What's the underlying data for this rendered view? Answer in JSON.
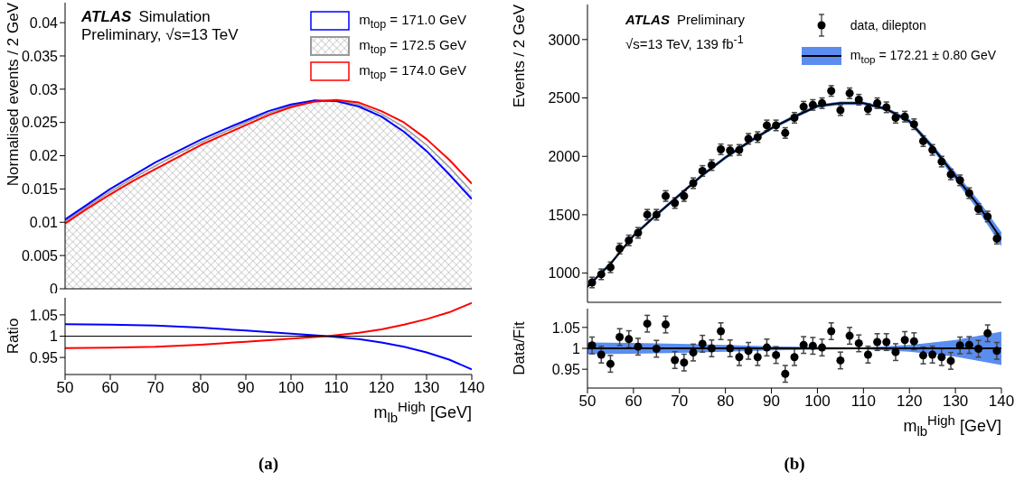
{
  "chart_data": [
    {
      "type": "line",
      "ylabel": "Normalised events / 2 GeV",
      "xlim": [
        50,
        140
      ],
      "xticks": [
        50,
        60,
        70,
        80,
        90,
        100,
        110,
        120,
        130,
        140
      ],
      "ylim": [
        0,
        0.043
      ],
      "yticks": [
        0,
        0.005,
        0.01,
        0.015,
        0.02,
        0.025,
        0.03,
        0.035,
        0.04
      ],
      "tick_labels": "y",
      "legend": "top right",
      "annotations": [
        "ATLAS",
        "Simulation",
        "Preliminary, √s=13 TeV"
      ],
      "series": [
        {
          "name": "m$_{top}$ = 171.0 GeV",
          "color": "#0000ff",
          "x": [
            50,
            55,
            60,
            65,
            70,
            75,
            80,
            85,
            90,
            95,
            100,
            105,
            110,
            115,
            120,
            125,
            130,
            135,
            140
          ],
          "values": [
            0.0104,
            0.0127,
            0.015,
            0.017,
            0.019,
            0.0207,
            0.0224,
            0.0239,
            0.0253,
            0.0267,
            0.0277,
            0.0283,
            0.0282,
            0.0274,
            0.0259,
            0.0236,
            0.0207,
            0.0172,
            0.0135
          ]
        },
        {
          "name": "m$_{top}$ = 172.5 GeV",
          "type": "area",
          "color": "#999999",
          "x": [
            50,
            55,
            60,
            65,
            70,
            75,
            80,
            85,
            90,
            95,
            100,
            105,
            110,
            115,
            120,
            125,
            130,
            135,
            140
          ],
          "values": [
            0.0101,
            0.0124,
            0.0146,
            0.0166,
            0.0185,
            0.0203,
            0.022,
            0.0235,
            0.025,
            0.0264,
            0.0275,
            0.0282,
            0.0283,
            0.0277,
            0.0263,
            0.0243,
            0.0216,
            0.0183,
            0.0146
          ]
        },
        {
          "name": "m$_{top}$ = 174.0 GeV",
          "color": "#ff0000",
          "x": [
            50,
            55,
            60,
            65,
            70,
            75,
            80,
            85,
            90,
            95,
            100,
            105,
            110,
            115,
            120,
            125,
            130,
            135,
            140
          ],
          "values": [
            0.0098,
            0.0121,
            0.0142,
            0.0162,
            0.018,
            0.0198,
            0.0216,
            0.0231,
            0.0246,
            0.0261,
            0.0273,
            0.0281,
            0.0284,
            0.028,
            0.0267,
            0.025,
            0.0225,
            0.0194,
            0.0158
          ]
        }
      ]
    },
    {
      "type": "line",
      "ylabel": "Ratio",
      "xlabel": "m$_{lb}$$^{High}$ [GeV]",
      "xlim": [
        50,
        140
      ],
      "xticks": [
        50,
        60,
        70,
        80,
        90,
        100,
        110,
        120,
        130,
        140
      ],
      "ylim": [
        0.91,
        1.09
      ],
      "yticks": [
        0.95,
        1,
        1.05
      ],
      "annotations": [
        "(a)"
      ],
      "ref_lines": [
        {
          "axis": "y",
          "value": 1,
          "color": "#000000"
        }
      ],
      "series": [
        {
          "color": "#0000ff",
          "x": [
            50,
            60,
            70,
            80,
            90,
            100,
            108,
            115,
            120,
            125,
            130,
            135,
            140
          ],
          "values": [
            1.028,
            1.027,
            1.025,
            1.02,
            1.013,
            1.006,
            1.0,
            0.993,
            0.985,
            0.975,
            0.962,
            0.945,
            0.922
          ]
        },
        {
          "color": "#ff0000",
          "x": [
            50,
            60,
            70,
            80,
            90,
            100,
            108,
            115,
            120,
            125,
            130,
            135,
            140
          ],
          "values": [
            0.972,
            0.973,
            0.975,
            0.98,
            0.987,
            0.994,
            1.0,
            1.008,
            1.016,
            1.027,
            1.04,
            1.056,
            1.078
          ]
        }
      ]
    },
    {
      "type": "scatter",
      "ylabel": "Events / 2 GeV",
      "xlim": [
        50,
        140
      ],
      "xticks": [
        50,
        60,
        70,
        80,
        90,
        100,
        110,
        120,
        130,
        140
      ],
      "ylim": [
        750,
        3300
      ],
      "yticks": [
        1000,
        1500,
        2000,
        2500,
        3000
      ],
      "tick_labels": "y",
      "legend": "top right",
      "annotations": [
        "ATLAS",
        "Preliminary",
        "√s=13 TeV, 139 fb$^{-1}$"
      ],
      "series": [
        {
          "name": "data, dilepton",
          "marker": "circle",
          "color": "#000000",
          "x": [
            51,
            53,
            55,
            57,
            59,
            61,
            63,
            65,
            67,
            69,
            71,
            73,
            75,
            77,
            79,
            81,
            83,
            85,
            87,
            89,
            91,
            93,
            95,
            97,
            99,
            101,
            103,
            105,
            107,
            109,
            111,
            113,
            115,
            117,
            119,
            121,
            123,
            125,
            127,
            129,
            131,
            133,
            135,
            137,
            139
          ],
          "values": [
            920,
            990,
            1050,
            1210,
            1280,
            1345,
            1500,
            1500,
            1660,
            1600,
            1660,
            1770,
            1875,
            1925,
            2060,
            2050,
            2055,
            2150,
            2165,
            2265,
            2265,
            2200,
            2330,
            2425,
            2440,
            2455,
            2560,
            2395,
            2540,
            2485,
            2405,
            2455,
            2420,
            2330,
            2340,
            2275,
            2130,
            2055,
            1955,
            1845,
            1795,
            1685,
            1550,
            1485,
            1295
          ],
          "errors": [
            45,
            45,
            45,
            45,
            45,
            45,
            45,
            45,
            45,
            45,
            45,
            45,
            45,
            45,
            45,
            45,
            45,
            45,
            45,
            45,
            45,
            45,
            45,
            45,
            45,
            45,
            45,
            45,
            45,
            45,
            45,
            45,
            45,
            45,
            45,
            45,
            45,
            45,
            45,
            45,
            45,
            45,
            45,
            45,
            45
          ]
        },
        {
          "name": "m$_{top}$ = 172.21 ± 0.80 GeV",
          "type": "line",
          "color": "#000000",
          "x": [
            50,
            55,
            60,
            65,
            70,
            75,
            80,
            85,
            90,
            95,
            100,
            105,
            110,
            115,
            120,
            125,
            130,
            135,
            140
          ],
          "values": [
            884,
            1080,
            1320,
            1500,
            1670,
            1840,
            1990,
            2120,
            2240,
            2340,
            2430,
            2455,
            2455,
            2405,
            2300,
            2080,
            1830,
            1580,
            1290
          ],
          "lower": [
            869,
            1065,
            1305,
            1485,
            1655,
            1825,
            1975,
            2105,
            2225,
            2325,
            2415,
            2440,
            2440,
            2390,
            2280,
            2055,
            1795,
            1535,
            1230
          ],
          "upper": [
            899,
            1095,
            1335,
            1515,
            1685,
            1855,
            2005,
            2135,
            2255,
            2355,
            2445,
            2470,
            2470,
            2420,
            2320,
            2105,
            1865,
            1625,
            1350
          ]
        }
      ]
    },
    {
      "type": "scatter",
      "ylabel": "Data/Fit",
      "xlabel": "m$_{lb}$$^{High}$ [GeV]",
      "xlim": [
        50,
        140
      ],
      "xticks": [
        50,
        60,
        70,
        80,
        90,
        100,
        110,
        120,
        130,
        140
      ],
      "ylim": [
        0.905,
        1.095
      ],
      "yticks": [
        0.95,
        1,
        1.05
      ],
      "annotations": [
        "(b)"
      ],
      "series": [
        {
          "marker": "circle",
          "color": "#000000",
          "x": [
            51,
            53,
            55,
            57,
            59,
            61,
            63,
            65,
            67,
            69,
            71,
            73,
            75,
            77,
            79,
            81,
            83,
            85,
            87,
            89,
            91,
            93,
            95,
            97,
            99,
            101,
            103,
            105,
            107,
            109,
            111,
            113,
            115,
            117,
            119,
            121,
            123,
            125,
            127,
            129,
            131,
            133,
            135,
            137,
            139
          ],
          "values": [
            1.007,
            0.985,
            0.963,
            1.027,
            1.022,
            1.004,
            1.059,
            0.999,
            1.057,
            0.972,
            0.966,
            0.99,
            1.011,
            1.0,
            1.041,
            1.0,
            0.979,
            0.994,
            0.979,
            1.002,
            0.984,
            0.939,
            0.979,
            1.008,
            1.006,
            1.002,
            1.041,
            0.971,
            1.03,
            1.012,
            0.985,
            1.015,
            1.015,
            0.991,
            1.02,
            1.017,
            0.983,
            0.985,
            0.979,
            0.97,
            1.007,
            1.008,
            0.999,
            1.036,
            0.994
          ],
          "errors": [
            0.02,
            0.02,
            0.02,
            0.02,
            0.02,
            0.02,
            0.02,
            0.02,
            0.02,
            0.02,
            0.02,
            0.02,
            0.02,
            0.02,
            0.02,
            0.02,
            0.02,
            0.02,
            0.02,
            0.02,
            0.02,
            0.02,
            0.02,
            0.02,
            0.02,
            0.02,
            0.02,
            0.02,
            0.02,
            0.02,
            0.02,
            0.02,
            0.02,
            0.02,
            0.02,
            0.02,
            0.02,
            0.02,
            0.02,
            0.02,
            0.02,
            0.02,
            0.02,
            0.02,
            0.02
          ]
        },
        {
          "type": "line",
          "color": "#000000",
          "x": [
            50,
            60,
            70,
            80,
            90,
            100,
            110,
            120,
            130,
            140
          ],
          "values": [
            1,
            1,
            1,
            1,
            1,
            1,
            1,
            1,
            1,
            1
          ],
          "lower": [
            0.986,
            0.987,
            0.989,
            0.992,
            0.995,
            0.997,
            0.998,
            0.992,
            0.98,
            0.96
          ],
          "upper": [
            1.014,
            1.013,
            1.011,
            1.008,
            1.005,
            1.003,
            1.002,
            1.008,
            1.02,
            1.04
          ]
        }
      ]
    }
  ]
}
